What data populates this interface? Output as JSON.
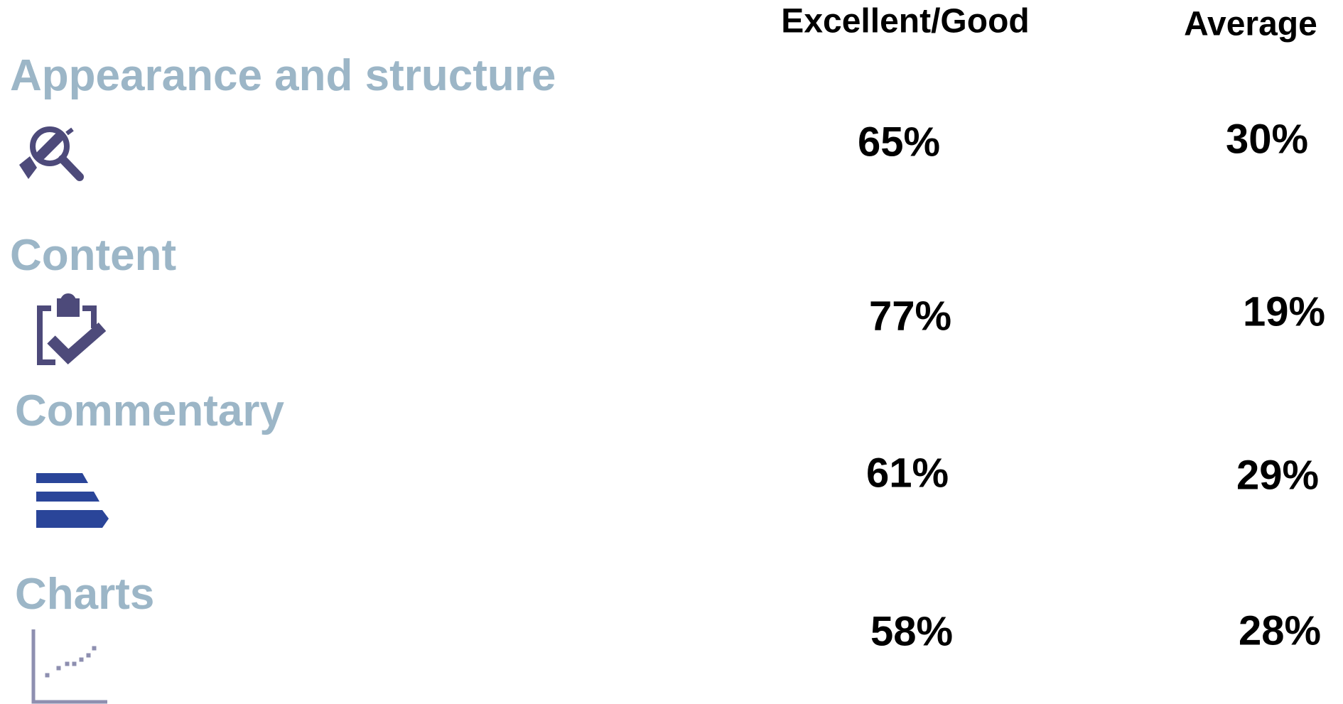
{
  "table": {
    "columns": [
      "Excellent/Good",
      "Average"
    ],
    "rows": [
      {
        "label": "Appearance and structure",
        "values": [
          "65%",
          "30%"
        ]
      },
      {
        "label": "Content",
        "values": [
          "77%",
          "19%"
        ]
      },
      {
        "label": "Commentary",
        "values": [
          "61%",
          "29%"
        ]
      },
      {
        "label": "Charts",
        "values": [
          "58%",
          "28%"
        ]
      }
    ]
  }
}
